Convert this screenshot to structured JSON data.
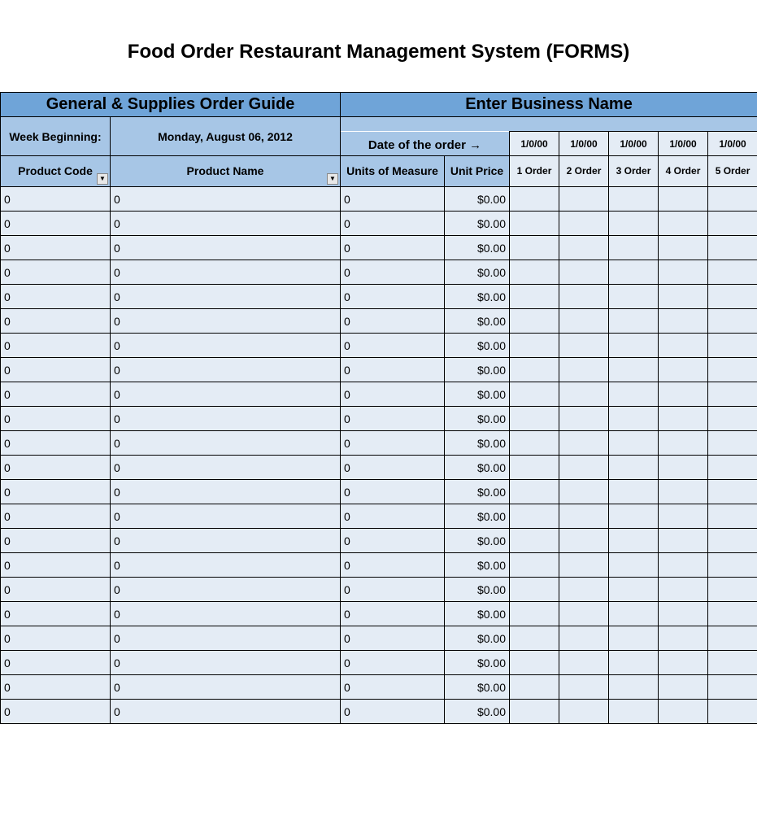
{
  "title": "Food Order Restaurant Management System (FORMS)",
  "header_left": "General & Supplies Order Guide",
  "header_right": "Enter Business Name",
  "week_label": "Week Beginning:",
  "week_value": "Monday, August 06, 2012",
  "date_label": "Date of the order  →",
  "dates": [
    "1/0/00",
    "1/0/00",
    "1/0/00",
    "1/0/00",
    "1/0/00"
  ],
  "columns": {
    "product_code": "Product Code",
    "product_name": "Product Name",
    "units": "Units of Measure",
    "price": "Unit Price",
    "orders": [
      "1 Order",
      "2 Order",
      "3 Order",
      "4 Order",
      "5 Order"
    ]
  },
  "rows": [
    {
      "code": "0",
      "name": "0",
      "units": "0",
      "price": "$0.00",
      "o": [
        "",
        "",
        "",
        "",
        ""
      ]
    },
    {
      "code": "0",
      "name": "0",
      "units": "0",
      "price": "$0.00",
      "o": [
        "",
        "",
        "",
        "",
        ""
      ]
    },
    {
      "code": "0",
      "name": "0",
      "units": "0",
      "price": "$0.00",
      "o": [
        "",
        "",
        "",
        "",
        ""
      ]
    },
    {
      "code": "0",
      "name": "0",
      "units": "0",
      "price": "$0.00",
      "o": [
        "",
        "",
        "",
        "",
        ""
      ]
    },
    {
      "code": "0",
      "name": "0",
      "units": "0",
      "price": "$0.00",
      "o": [
        "",
        "",
        "",
        "",
        ""
      ]
    },
    {
      "code": "0",
      "name": "0",
      "units": "0",
      "price": "$0.00",
      "o": [
        "",
        "",
        "",
        "",
        ""
      ]
    },
    {
      "code": "0",
      "name": "0",
      "units": "0",
      "price": "$0.00",
      "o": [
        "",
        "",
        "",
        "",
        ""
      ]
    },
    {
      "code": "0",
      "name": "0",
      "units": "0",
      "price": "$0.00",
      "o": [
        "",
        "",
        "",
        "",
        ""
      ]
    },
    {
      "code": "0",
      "name": "0",
      "units": "0",
      "price": "$0.00",
      "o": [
        "",
        "",
        "",
        "",
        ""
      ]
    },
    {
      "code": "0",
      "name": "0",
      "units": "0",
      "price": "$0.00",
      "o": [
        "",
        "",
        "",
        "",
        ""
      ]
    },
    {
      "code": "0",
      "name": "0",
      "units": "0",
      "price": "$0.00",
      "o": [
        "",
        "",
        "",
        "",
        ""
      ]
    },
    {
      "code": "0",
      "name": "0",
      "units": "0",
      "price": "$0.00",
      "o": [
        "",
        "",
        "",
        "",
        ""
      ]
    },
    {
      "code": "0",
      "name": "0",
      "units": "0",
      "price": "$0.00",
      "o": [
        "",
        "",
        "",
        "",
        ""
      ]
    },
    {
      "code": "0",
      "name": "0",
      "units": "0",
      "price": "$0.00",
      "o": [
        "",
        "",
        "",
        "",
        ""
      ]
    },
    {
      "code": "0",
      "name": "0",
      "units": "0",
      "price": "$0.00",
      "o": [
        "",
        "",
        "",
        "",
        ""
      ]
    },
    {
      "code": "0",
      "name": "0",
      "units": "0",
      "price": "$0.00",
      "o": [
        "",
        "",
        "",
        "",
        ""
      ]
    },
    {
      "code": "0",
      "name": "0",
      "units": "0",
      "price": "$0.00",
      "o": [
        "",
        "",
        "",
        "",
        ""
      ]
    },
    {
      "code": "0",
      "name": "0",
      "units": "0",
      "price": "$0.00",
      "o": [
        "",
        "",
        "",
        "",
        ""
      ]
    },
    {
      "code": "0",
      "name": "0",
      "units": "0",
      "price": "$0.00",
      "o": [
        "",
        "",
        "",
        "",
        ""
      ]
    },
    {
      "code": "0",
      "name": "0",
      "units": "0",
      "price": "$0.00",
      "o": [
        "",
        "",
        "",
        "",
        ""
      ]
    },
    {
      "code": "0",
      "name": "0",
      "units": "0",
      "price": "$0.00",
      "o": [
        "",
        "",
        "",
        "",
        ""
      ]
    },
    {
      "code": "0",
      "name": "0",
      "units": "0",
      "price": "$0.00",
      "o": [
        "",
        "",
        "",
        "",
        ""
      ]
    }
  ],
  "col_widths": {
    "product_code": 135,
    "product_name": 283,
    "units": 128,
    "price": 80,
    "order": 61
  },
  "colors": {
    "header_dark": "#6fa4d8",
    "header_light": "#a7c6e6",
    "cell_bg": "#e4ecf5",
    "border": "#000000",
    "page_bg": "#ffffff"
  }
}
